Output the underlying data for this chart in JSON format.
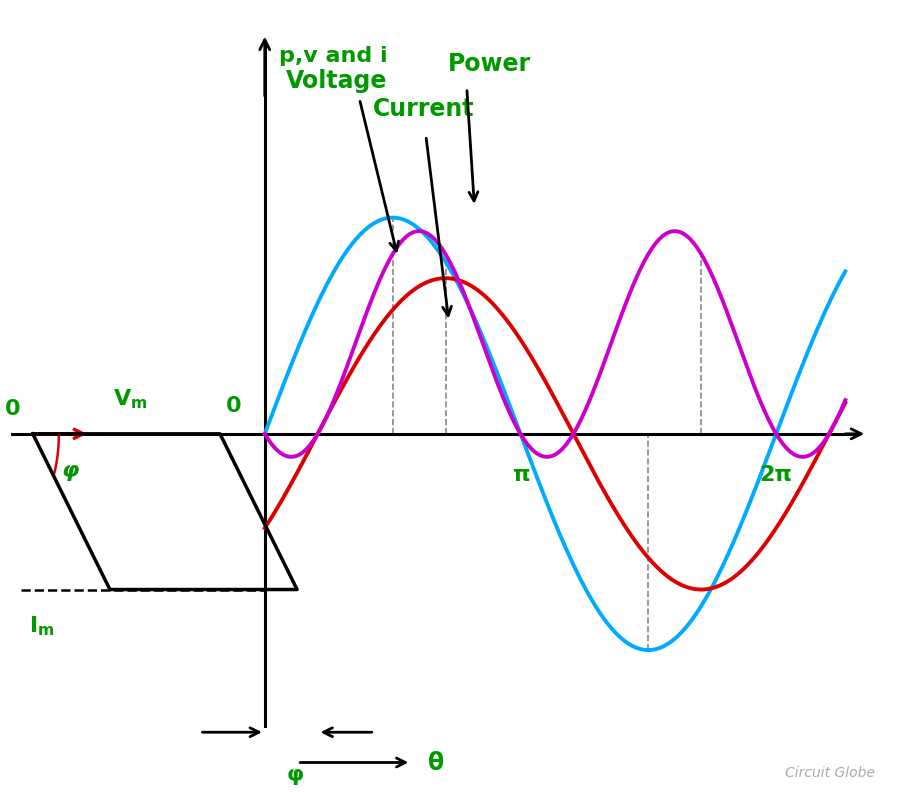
{
  "bg_color": "#ffffff",
  "green_color": "#009900",
  "cyan_color": "#00aaff",
  "magenta_color": "#cc00cc",
  "red_color": "#dd0000",
  "black_color": "#000000",
  "phi": 0.65,
  "voltage_amplitude": 1.0,
  "current_amplitude": 0.72,
  "power_scale": 1.45,
  "label_voltage": "Voltage",
  "label_current": "Current",
  "label_power": "Power",
  "label_yaxis": "p,v and i",
  "label_xaxis": "θ",
  "label_phi_bracket": "φ",
  "label_phi_phasor": "φ",
  "label_0_left": "0",
  "label_0_origin": "0",
  "label_pi": "π",
  "label_2pi": "2π",
  "label_vm": "V_m",
  "label_im": "I_m",
  "watermark": "Circuit Globe",
  "xlim_left": -3.2,
  "xlim_right": 7.8,
  "ylim_bottom": -1.65,
  "ylim_top": 2.0
}
